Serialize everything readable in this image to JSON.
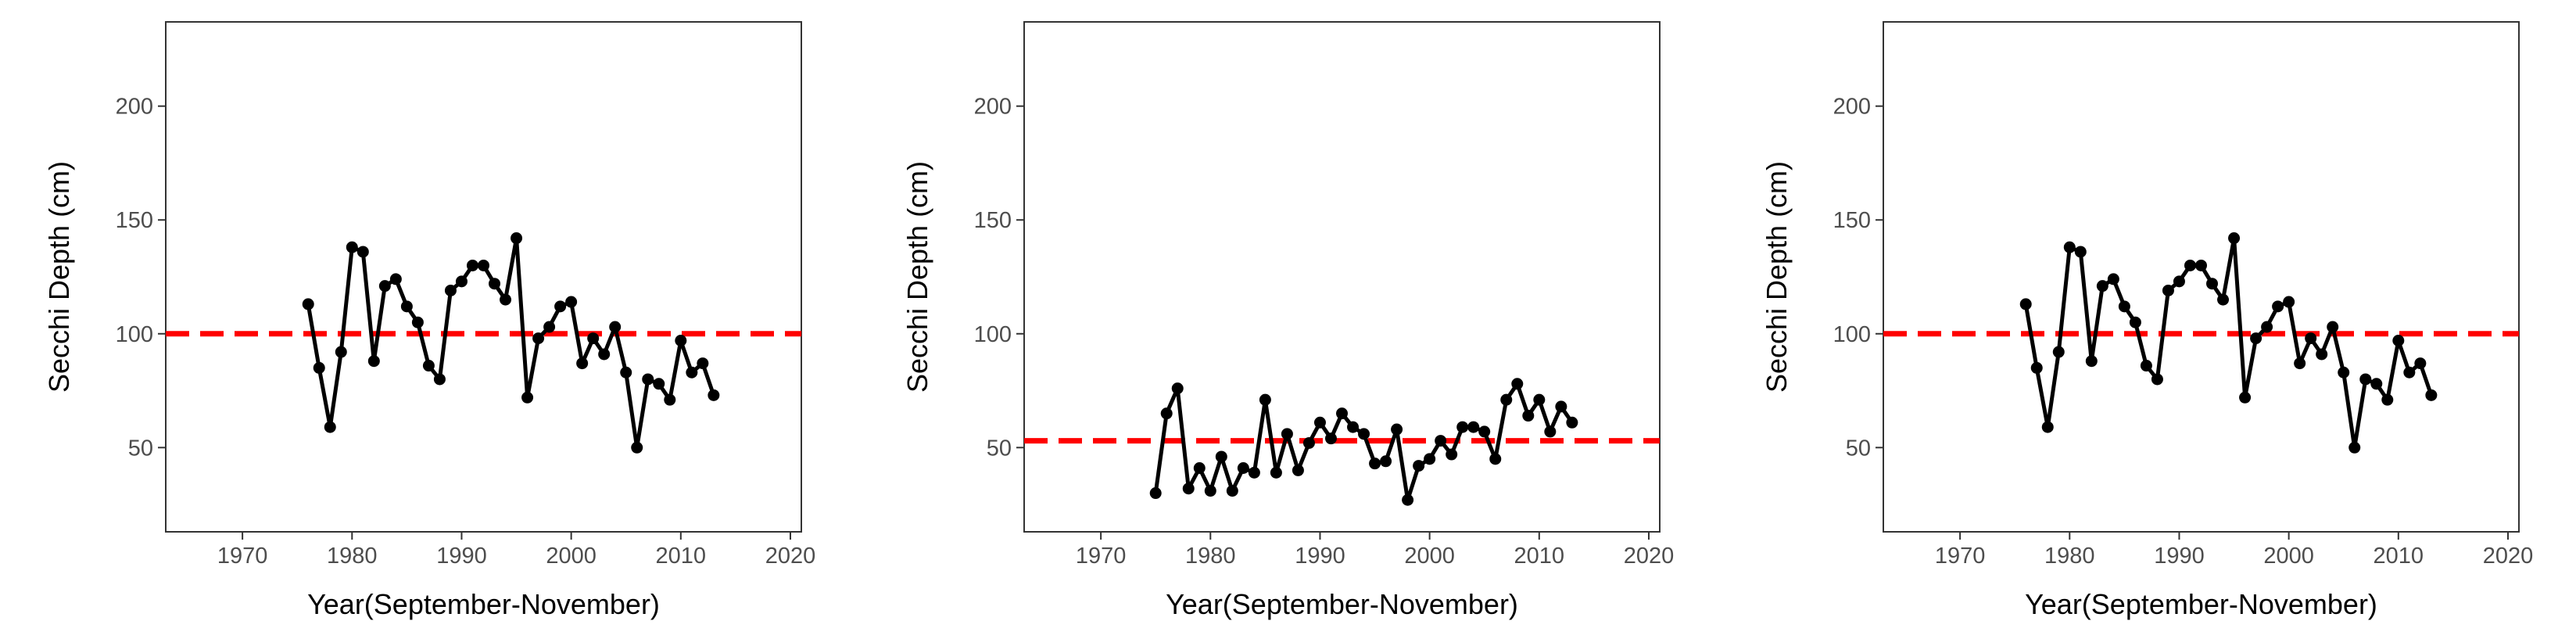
{
  "chart_data": [
    {
      "type": "line",
      "xlabel": "Year(September-November)",
      "ylabel": "Secchi Depth (cm)",
      "xlim": [
        1963,
        2021
      ],
      "ylim": [
        13,
        237
      ],
      "xticks": [
        1970,
        1980,
        1990,
        2000,
        2010,
        2020
      ],
      "yticks": [
        50,
        100,
        150,
        200
      ],
      "grid": false,
      "reference_line": {
        "y": 100,
        "color": "#ff0000",
        "style": "dashed"
      },
      "series": [
        {
          "color": "#000000",
          "x": [
            1976,
            1977,
            1978,
            1979,
            1980,
            1981,
            1982,
            1983,
            1984,
            1985,
            1986,
            1987,
            1988,
            1989,
            1990,
            1991,
            1992,
            1993,
            1994,
            1995,
            1996,
            1997,
            1998,
            1999,
            2000,
            2001,
            2002,
            2003,
            2004,
            2005,
            2006,
            2007,
            2008,
            2009,
            2010,
            2011,
            2012,
            2013
          ],
          "y": [
            113,
            85,
            59,
            92,
            138,
            136,
            88,
            121,
            124,
            112,
            105,
            86,
            80,
            119,
            123,
            130,
            130,
            122,
            115,
            142,
            72,
            98,
            103,
            112,
            114,
            87,
            98,
            91,
            103,
            83,
            50,
            80,
            78,
            71,
            97,
            83,
            87,
            73
          ]
        }
      ]
    },
    {
      "type": "line",
      "xlabel": "Year(September-November)",
      "ylabel": "Secchi Depth (cm)",
      "xlim": [
        1963,
        2021
      ],
      "ylim": [
        13,
        237
      ],
      "xticks": [
        1970,
        1980,
        1990,
        2000,
        2010,
        2020
      ],
      "yticks": [
        50,
        100,
        150,
        200
      ],
      "grid": false,
      "reference_line": {
        "y": 53,
        "color": "#ff0000",
        "style": "dashed"
      },
      "series": [
        {
          "color": "#000000",
          "x": [
            1975,
            1976,
            1977,
            1978,
            1979,
            1980,
            1981,
            1982,
            1983,
            1984,
            1985,
            1986,
            1987,
            1988,
            1989,
            1990,
            1991,
            1992,
            1993,
            1994,
            1995,
            1996,
            1997,
            1998,
            1999,
            2000,
            2001,
            2002,
            2003,
            2004,
            2005,
            2006,
            2007,
            2008,
            2009,
            2010,
            2011,
            2012,
            2013
          ],
          "y": [
            30,
            65,
            76,
            32,
            41,
            31,
            46,
            31,
            41,
            39,
            71,
            39,
            56,
            40,
            52,
            61,
            54,
            65,
            59,
            56,
            43,
            44,
            58,
            27,
            42,
            45,
            53,
            47,
            59,
            59,
            57,
            45,
            71,
            78,
            64,
            71,
            57,
            68,
            61
          ]
        }
      ]
    },
    {
      "type": "line",
      "xlabel": "Year(September-November)",
      "ylabel": "Secchi Depth (cm)",
      "xlim": [
        1963,
        2021
      ],
      "ylim": [
        13,
        237
      ],
      "xticks": [
        1970,
        1980,
        1990,
        2000,
        2010,
        2020
      ],
      "yticks": [
        50,
        100,
        150,
        200
      ],
      "grid": false,
      "reference_line": {
        "y": 100,
        "color": "#ff0000",
        "style": "dashed"
      },
      "series": [
        {
          "color": "#000000",
          "x": [
            1976,
            1977,
            1978,
            1979,
            1980,
            1981,
            1982,
            1983,
            1984,
            1985,
            1986,
            1987,
            1988,
            1989,
            1990,
            1991,
            1992,
            1993,
            1994,
            1995,
            1996,
            1997,
            1998,
            1999,
            2000,
            2001,
            2002,
            2003,
            2004,
            2005,
            2006,
            2007,
            2008,
            2009,
            2010,
            2011,
            2012,
            2013
          ],
          "y": [
            113,
            85,
            59,
            92,
            138,
            136,
            88,
            121,
            124,
            112,
            105,
            86,
            80,
            119,
            123,
            130,
            130,
            122,
            115,
            142,
            72,
            98,
            103,
            112,
            114,
            87,
            98,
            91,
            103,
            83,
            50,
            80,
            78,
            71,
            97,
            83,
            87,
            73
          ]
        }
      ]
    }
  ]
}
